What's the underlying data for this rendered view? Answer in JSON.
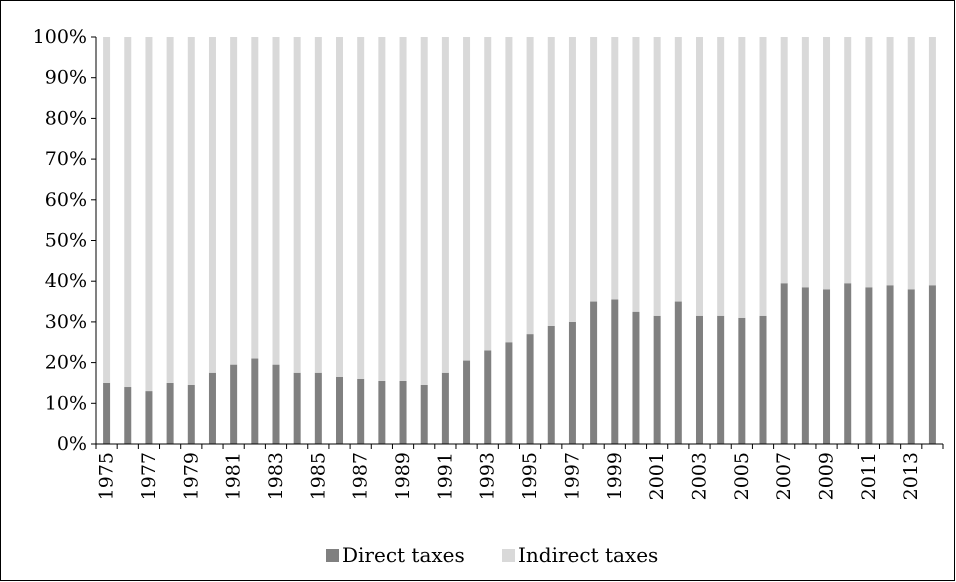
{
  "chart_data": {
    "type": "bar",
    "stacked": true,
    "percent": true,
    "title": "",
    "xlabel": "",
    "ylabel": "",
    "ylim": [
      0,
      100
    ],
    "yticks": [
      "0%",
      "10%",
      "20%",
      "30%",
      "40%",
      "50%",
      "60%",
      "70%",
      "80%",
      "90%",
      "100%"
    ],
    "grid": false,
    "legend": "bottom",
    "categories": [
      "1975",
      "1976",
      "1977",
      "1978",
      "1979",
      "1980",
      "1981",
      "1982",
      "1983",
      "1984",
      "1985",
      "1986",
      "1987",
      "1988",
      "1989",
      "1990",
      "1991",
      "1992",
      "1993",
      "1994",
      "1995",
      "1996",
      "1997",
      "1998",
      "1999",
      "2000",
      "2001",
      "2002",
      "2003",
      "2004",
      "2005",
      "2006",
      "2007",
      "2008",
      "2009",
      "2010",
      "2011",
      "2012",
      "2013",
      "2014"
    ],
    "x_tick_labels": [
      "1975",
      "1977",
      "1979",
      "1981",
      "1983",
      "1985",
      "1987",
      "1989",
      "1991",
      "1993",
      "1995",
      "1997",
      "1999",
      "2001",
      "2003",
      "2005",
      "2007",
      "2009",
      "2011",
      "2013"
    ],
    "series": [
      {
        "name": "Direct taxes",
        "color": "#808080",
        "values": [
          15,
          14,
          13,
          15,
          14.5,
          17.5,
          19.5,
          21,
          19.5,
          17.5,
          17.5,
          16.5,
          16,
          15.5,
          15.5,
          14.5,
          17.5,
          20.5,
          23,
          25,
          27,
          29,
          30,
          35,
          35.5,
          32.5,
          31.5,
          35,
          31.5,
          31.5,
          31,
          31.5,
          39.5,
          38.5,
          38,
          39.5,
          38.5,
          39,
          38,
          39
        ]
      },
      {
        "name": "Indirect taxes",
        "color": "#d9d9d9",
        "values": [
          85,
          86,
          87,
          85,
          85.5,
          82.5,
          80.5,
          79,
          80.5,
          82.5,
          82.5,
          83.5,
          84,
          84.5,
          84.5,
          85.5,
          82.5,
          79.5,
          77,
          75,
          73,
          71,
          70,
          65,
          64.5,
          67.5,
          68.5,
          65,
          68.5,
          68.5,
          69,
          68.5,
          60.5,
          61.5,
          62,
          60.5,
          61.5,
          61,
          62,
          61
        ]
      }
    ]
  }
}
